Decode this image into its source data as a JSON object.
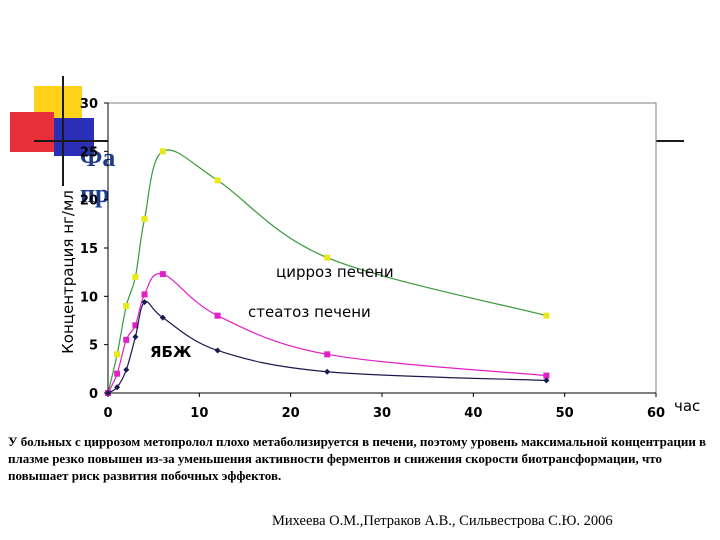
{
  "slide": {
    "title_fragments": [
      "Фа",
      "пр"
    ],
    "title_color": "#1f3b8c",
    "caption": "У больных с циррозом метопролол плохо метаболизируется в печени, поэтому уровень максимальной концентрации в плазме резко повышен из-за уменьшения активности ферментов и снижения скорости биотрансформации, что повышает риск развития побочных эффектов.",
    "citation": "Михеева О.М.,Петраков А.В., Сильвестрова С.Ю. 2006",
    "decor_colors": {
      "yellow": "#ffd21a",
      "red": "#e8303a",
      "blue": "#2b2fb8",
      "line": "#1a1a1a"
    }
  },
  "chart_data": {
    "type": "line",
    "title": "",
    "xlabel": "час",
    "ylabel": "Концентрация нг/мл",
    "xlim": [
      0,
      60
    ],
    "ylim": [
      0,
      30
    ],
    "x_ticks": [
      "0",
      "10",
      "20",
      "30",
      "40",
      "50",
      "60"
    ],
    "y_ticks": [
      "0",
      "5",
      "10",
      "15",
      "20",
      "25",
      "30"
    ],
    "grid": false,
    "legend": "inline labels",
    "series": [
      {
        "name": "цирроз печени",
        "color": "#3a9a3a",
        "marker": "square",
        "marker_color": "#e8e81a",
        "x": [
          0,
          1,
          2,
          3,
          4,
          6,
          12,
          24,
          48
        ],
        "y": [
          0,
          4,
          9,
          12,
          18,
          25,
          22,
          14,
          8
        ]
      },
      {
        "name": "стеатоз печени",
        "color": "#e020c8",
        "marker": "square",
        "marker_color": "#e020c8",
        "x": [
          0,
          1,
          2,
          3,
          4,
          6,
          12,
          24,
          48
        ],
        "y": [
          0,
          2,
          5.5,
          7,
          10.2,
          12.3,
          8,
          4,
          1.8
        ]
      },
      {
        "name": "ЯБЖ",
        "color": "#1a1a50",
        "marker": "diamond",
        "marker_color": "#1a1a50",
        "x": [
          0,
          1,
          2,
          3,
          4,
          6,
          12,
          24,
          48
        ],
        "y": [
          0,
          0.6,
          2.4,
          5.8,
          9.4,
          7.8,
          4.4,
          2.2,
          1.3
        ]
      }
    ]
  }
}
